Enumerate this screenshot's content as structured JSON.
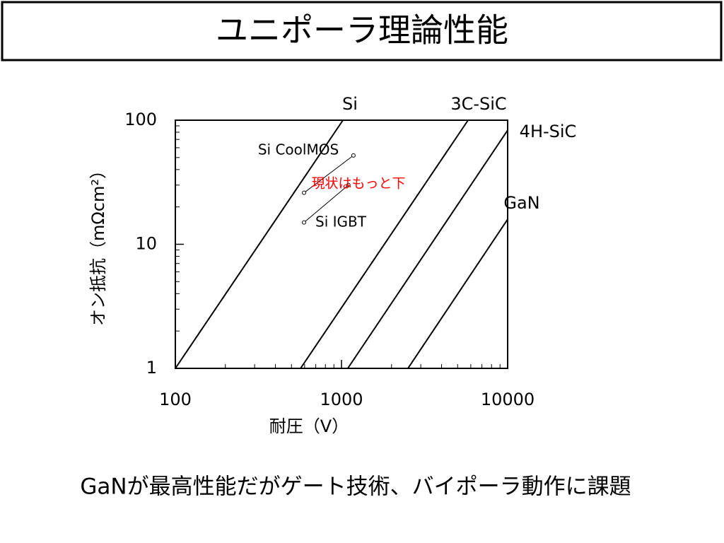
{
  "title": "ユニポーラ理論性能",
  "footer": "GaNが最高性能だがゲート技術、バイポーラ動作に課題",
  "chart_data": {
    "type": "line",
    "xlabel": "耐圧（V）",
    "ylabel": "オン抵抗（mΩcm²）",
    "xscale": "log",
    "yscale": "log",
    "xlim": [
      100,
      10000
    ],
    "ylim": [
      1,
      100
    ],
    "xticks": [
      100,
      1000,
      10000
    ],
    "yticks": [
      1,
      10,
      100
    ],
    "xminorticks": [
      200,
      300,
      400,
      500,
      600,
      700,
      800,
      900,
      2000,
      3000,
      4000,
      5000,
      6000,
      7000,
      8000,
      9000
    ],
    "yminorticks": [
      2,
      3,
      4,
      5,
      6,
      7,
      8,
      9,
      20,
      30,
      40,
      50,
      60,
      70,
      80,
      90
    ],
    "series": [
      {
        "name": "Si",
        "color": "#000000",
        "x": [
          100,
          1020
        ],
        "values": [
          1,
          100
        ]
      },
      {
        "name": "3C-SiC",
        "color": "#000000",
        "x": [
          567,
          5780
        ],
        "values": [
          1,
          100
        ]
      },
      {
        "name": "4H-SiC",
        "color": "#000000",
        "x": [
          1091,
          10000
        ],
        "values": [
          1,
          83
        ]
      },
      {
        "name": "GaN",
        "color": "#000000",
        "x": [
          2512,
          10000
        ],
        "values": [
          1,
          15.9
        ]
      }
    ],
    "points": [
      {
        "name": "Si CoolMOS",
        "color": "#000000",
        "x": [
          1180,
          595
        ],
        "values": [
          52,
          26
        ]
      },
      {
        "name": "Si IGBT",
        "color": "#000000",
        "x": [
          595,
          1100
        ],
        "values": [
          15,
          30
        ]
      }
    ],
    "annotations": [
      {
        "text": "現状はもっと下",
        "color": "#ff0000"
      }
    ]
  }
}
